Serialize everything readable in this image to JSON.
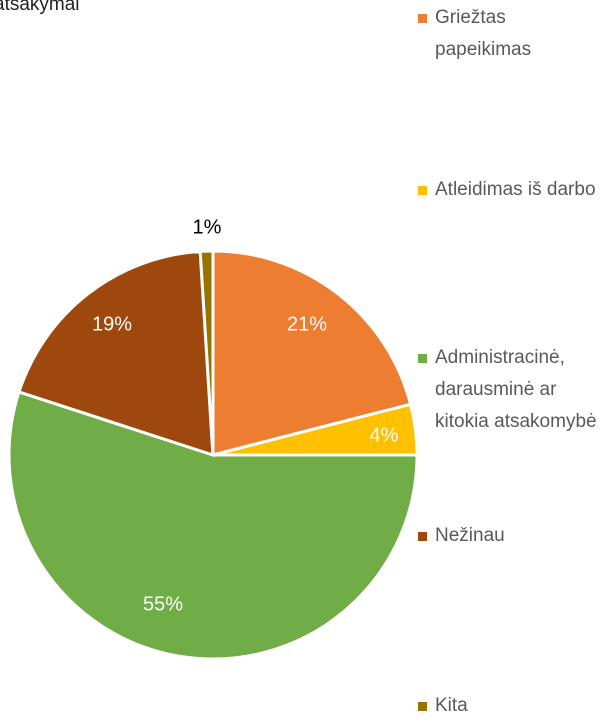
{
  "chart_data": {
    "type": "pie",
    "title": "atsakymai",
    "categories": [
      "Griežtas papeikimas",
      "Atleidimas iš darbo",
      "Administracinė, darausminė ar kitokia atsakomybė",
      "Nežinau",
      "Kita"
    ],
    "values": [
      21,
      4,
      55,
      19,
      1
    ],
    "value_labels": [
      "21%",
      "4%",
      "55%",
      "19%",
      "1%"
    ],
    "colors": [
      "#ED7D31",
      "#FFC000",
      "#70AD47",
      "#9E480E",
      "#997300"
    ]
  }
}
